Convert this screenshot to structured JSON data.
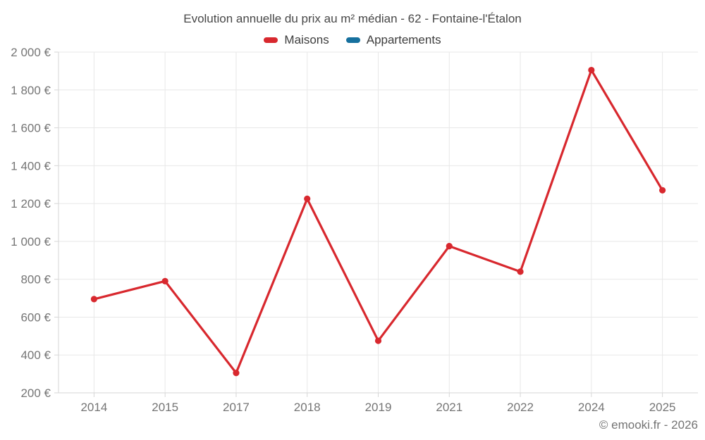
{
  "page": {
    "background": "#ffffff"
  },
  "footer": {
    "copyright": "© emooki.fr - 2026"
  },
  "colors": {
    "grid": "#e8e8e8",
    "axis": "#d6d6d6",
    "tick_text": "#757575",
    "title_text": "#474747",
    "legend_text": "#3d3d3d",
    "footer_text": "#737373"
  },
  "chart_data": {
    "type": "line",
    "title": "Evolution annuelle du prix au m² médian - 62 - Fontaine-l'Étalon",
    "xlabel": "",
    "ylabel": "",
    "grid": true,
    "legend_position": "top",
    "marker": "circle",
    "categories": [
      "2014",
      "2015",
      "2017",
      "2018",
      "2019",
      "2021",
      "2022",
      "2024",
      "2025"
    ],
    "series": [
      {
        "name": "Maisons",
        "color": "#d8282e",
        "values": [
          695,
          790,
          305,
          1225,
          475,
          975,
          840,
          1905,
          1270
        ]
      },
      {
        "name": "Appartements",
        "color": "#16709e",
        "values": []
      }
    ],
    "ylim": [
      200,
      2000
    ],
    "y_ticks": [
      {
        "value": 200,
        "label": "200 €"
      },
      {
        "value": 400,
        "label": "400 €"
      },
      {
        "value": 600,
        "label": "600 €"
      },
      {
        "value": 800,
        "label": "800 €"
      },
      {
        "value": 1000,
        "label": "1 000 €"
      },
      {
        "value": 1200,
        "label": "1 200 €"
      },
      {
        "value": 1400,
        "label": "1 400 €"
      },
      {
        "value": 1600,
        "label": "1 600 €"
      },
      {
        "value": 1800,
        "label": "1 800 €"
      },
      {
        "value": 2000,
        "label": "2 000 €"
      }
    ]
  }
}
